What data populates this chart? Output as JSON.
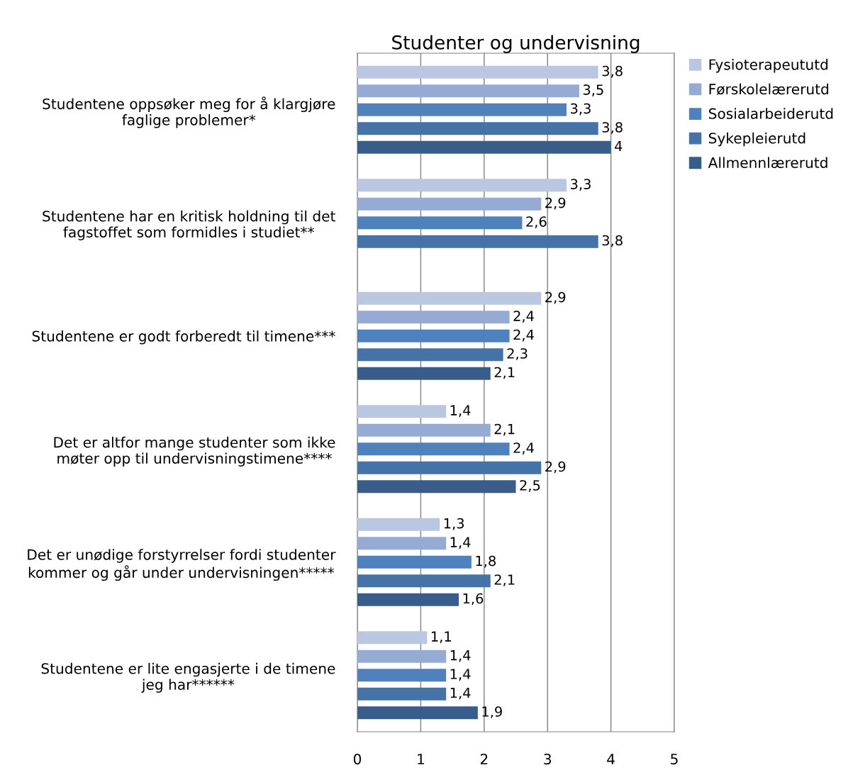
{
  "chart_data": {
    "type": "bar",
    "orientation": "horizontal",
    "title": "Studenter og undervisning",
    "categories": [
      "Studentene oppsøker meg for å klargjøre\nfaglige problemer*",
      "Studentene har en kritisk holdning til det\nfagstoffet som formidles i studiet**",
      "Studentene er godt forberedt til timene***",
      "Det er altfor mange studenter som ikke\nmøter opp til undervisningstimene****",
      "Det er unødige forstyrrelser fordi studenter\nkommer og går under undervisningen*****",
      "Studentene er lite engasjerte i de timene\njeg har******"
    ],
    "series": [
      {
        "name": "Fysioterapeututd",
        "color": "#b9c7e0",
        "values": [
          3.8,
          3.3,
          2.9,
          1.4,
          1.3,
          1.1
        ],
        "value_labels": [
          "3,8",
          "3,3",
          "2,9",
          "1,4",
          "1,3",
          "1,1"
        ]
      },
      {
        "name": "Førskolelærerutd",
        "color": "#95abd4",
        "values": [
          3.5,
          2.9,
          2.4,
          2.1,
          1.4,
          1.4
        ],
        "value_labels": [
          "3,5",
          "2,9",
          "2,4",
          "2,1",
          "1,4",
          "1,4"
        ]
      },
      {
        "name": "Sosialarbeiderutd",
        "color": "#4f81bd",
        "values": [
          3.3,
          2.6,
          2.4,
          2.4,
          1.8,
          1.4
        ],
        "value_labels": [
          "3,3",
          "2,6",
          "2,4",
          "2,4",
          "1,8",
          "1,4"
        ]
      },
      {
        "name": "Sykepleierutd",
        "color": "#4572a7",
        "values": [
          3.8,
          3.8,
          2.3,
          2.9,
          2.1,
          1.4
        ],
        "value_labels": [
          "3,8",
          "3,8",
          "2,3",
          "2,9",
          "2,1",
          "1,4"
        ]
      },
      {
        "name": "Allmennlærerutd",
        "color": "#385d8a",
        "values": [
          4,
          null,
          2.1,
          2.5,
          1.6,
          1.9
        ],
        "value_labels": [
          "4",
          null,
          "2,1",
          "2,5",
          "1,6",
          "1,9"
        ]
      }
    ],
    "xlim": [
      0,
      5
    ],
    "xticks": [
      0,
      1,
      2,
      3,
      4,
      5
    ],
    "grid": "x",
    "legend": "right"
  }
}
